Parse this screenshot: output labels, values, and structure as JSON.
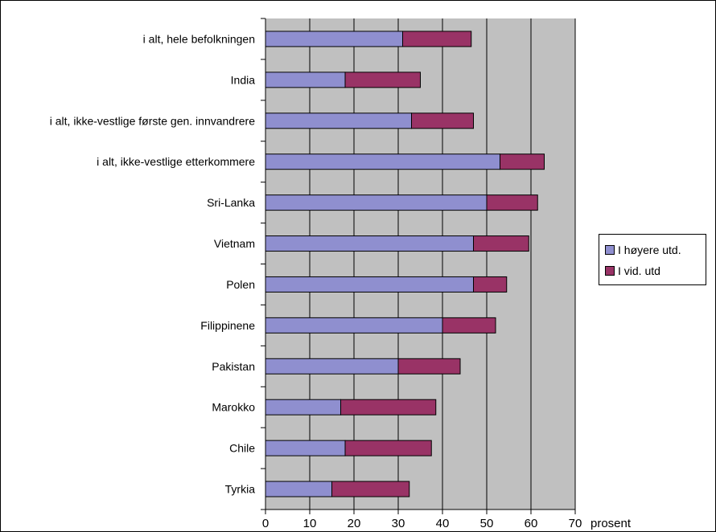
{
  "chart_data": {
    "type": "bar",
    "orientation": "horizontal",
    "stacked": true,
    "categories": [
      "i alt, hele befolkningen",
      "India",
      "i alt, ikke-vestlige første gen. innvandrere",
      "i alt, ikke-vestlige etterkommere",
      "Sri-Lanka",
      "Vietnam",
      "Polen",
      "Filippinene",
      "Pakistan",
      "Marokko",
      "Chile",
      "Tyrkia"
    ],
    "series": [
      {
        "name": "I høyere utd.",
        "color": "#8f8fcf",
        "values": [
          31,
          18,
          33,
          53,
          50,
          47,
          47,
          40,
          30,
          17,
          18,
          15
        ]
      },
      {
        "name": "I vid. utd",
        "color": "#993366",
        "values": [
          15.5,
          17,
          14,
          10,
          11.5,
          12.5,
          7.5,
          12,
          14,
          21.5,
          19.5,
          17.5
        ]
      }
    ],
    "xlim": [
      0,
      70
    ],
    "xticks": [
      "0",
      "10",
      "20",
      "30",
      "40",
      "50",
      "60",
      "70"
    ],
    "xunit": "prosent",
    "legend_position": "right",
    "grid": true,
    "plot_background": "#c0c0c0"
  }
}
